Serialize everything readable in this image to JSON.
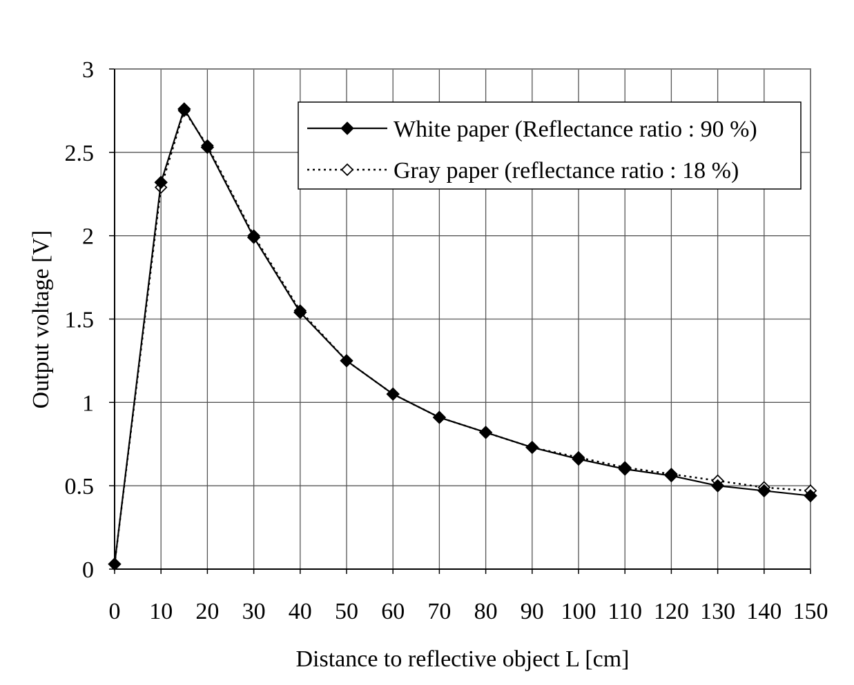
{
  "chart_data": {
    "type": "line",
    "title": "",
    "xlabel": "Distance to reflective object L [cm]",
    "ylabel": "Output voltage [V]",
    "xlim": [
      0,
      150
    ],
    "ylim": [
      0,
      3
    ],
    "xticks": [
      "0",
      "10",
      "20",
      "30",
      "40",
      "50",
      "60",
      "70",
      "80",
      "90",
      "100",
      "110",
      "120",
      "130",
      "140",
      "150"
    ],
    "yticks": [
      "0",
      "0.5",
      "1",
      "1.5",
      "2",
      "2.5",
      "3"
    ],
    "grid": true,
    "legend_position": "top-right",
    "series": [
      {
        "name": "White paper (Reflectance ratio : 90 %)",
        "line_style": "solid",
        "marker": "filled-diamond",
        "x": [
          0,
          10,
          15,
          20,
          30,
          40,
          50,
          60,
          70,
          80,
          90,
          100,
          110,
          120,
          130,
          140,
          150
        ],
        "y": [
          0.03,
          2.32,
          2.76,
          2.53,
          1.99,
          1.54,
          1.25,
          1.05,
          0.91,
          0.82,
          0.73,
          0.66,
          0.6,
          0.56,
          0.5,
          0.47,
          0.44
        ]
      },
      {
        "name": "Gray paper (reflectance ratio : 18 %)",
        "line_style": "dotted",
        "marker": "open-diamond",
        "x": [
          0,
          10,
          15,
          20,
          30,
          40,
          50,
          60,
          70,
          80,
          90,
          100,
          110,
          120,
          130,
          140,
          150
        ],
        "y": [
          0.03,
          2.29,
          2.75,
          2.54,
          2.0,
          1.55,
          1.25,
          1.05,
          0.91,
          0.82,
          0.73,
          0.67,
          0.61,
          0.57,
          0.53,
          0.49,
          0.47
        ]
      }
    ]
  }
}
